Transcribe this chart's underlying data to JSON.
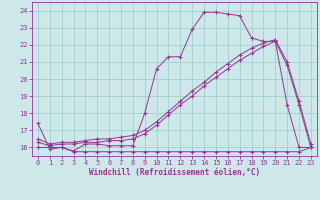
{
  "xlabel": "Windchill (Refroidissement éolien,°C)",
  "background_color": "#cce8e8",
  "grid_color": "#99cccc",
  "line_color": "#993399",
  "xlim_min": -0.5,
  "xlim_max": 23.5,
  "ylim_min": 15.5,
  "ylim_max": 24.5,
  "yticks": [
    16,
    17,
    18,
    19,
    20,
    21,
    22,
    23,
    24
  ],
  "xticks": [
    0,
    1,
    2,
    3,
    4,
    5,
    6,
    7,
    8,
    9,
    10,
    11,
    12,
    13,
    14,
    15,
    16,
    17,
    18,
    19,
    20,
    21,
    22,
    23
  ],
  "curve1_x": [
    0,
    1,
    2,
    3,
    4,
    5,
    6,
    7,
    8,
    9,
    10,
    11,
    12,
    13,
    14,
    15,
    16,
    17,
    18,
    19,
    20,
    21,
    22,
    23
  ],
  "curve1_y": [
    17.4,
    15.9,
    16.0,
    15.8,
    16.2,
    16.2,
    16.1,
    16.1,
    16.1,
    18.0,
    20.6,
    21.3,
    21.3,
    22.9,
    23.9,
    23.9,
    23.8,
    23.7,
    22.4,
    22.2,
    22.2,
    18.5,
    16.0,
    16.0
  ],
  "curve2_x": [
    0,
    1,
    2,
    3,
    4,
    5,
    6,
    7,
    8,
    9,
    10,
    11,
    12,
    13,
    14,
    15,
    16,
    17,
    18,
    19,
    20,
    21,
    22,
    23
  ],
  "curve2_y": [
    16.0,
    16.0,
    16.0,
    15.75,
    15.75,
    15.75,
    15.75,
    15.75,
    15.75,
    15.75,
    15.75,
    15.75,
    15.75,
    15.75,
    15.75,
    15.75,
    15.75,
    15.75,
    15.75,
    15.75,
    15.75,
    15.75,
    15.75,
    16.0
  ],
  "curve3_x": [
    0,
    1,
    2,
    3,
    4,
    5,
    6,
    7,
    8,
    9,
    10,
    11,
    12,
    13,
    14,
    15,
    16,
    17,
    18,
    19,
    20,
    21,
    22,
    23
  ],
  "curve3_y": [
    16.3,
    16.1,
    16.2,
    16.2,
    16.3,
    16.3,
    16.4,
    16.4,
    16.5,
    16.8,
    17.3,
    17.9,
    18.5,
    19.0,
    19.6,
    20.1,
    20.6,
    21.1,
    21.5,
    21.9,
    22.2,
    20.8,
    18.5,
    16.0
  ],
  "curve4_x": [
    0,
    1,
    2,
    3,
    4,
    5,
    6,
    7,
    8,
    9,
    10,
    11,
    12,
    13,
    14,
    15,
    16,
    17,
    18,
    19,
    20,
    21,
    22,
    23
  ],
  "curve4_y": [
    16.5,
    16.2,
    16.3,
    16.3,
    16.4,
    16.5,
    16.5,
    16.6,
    16.7,
    17.0,
    17.5,
    18.1,
    18.7,
    19.3,
    19.8,
    20.4,
    20.9,
    21.4,
    21.8,
    22.1,
    22.3,
    21.0,
    18.7,
    16.2
  ],
  "xlabel_fontsize": 5.5,
  "tick_fontsize": 5.0,
  "marker_size": 3,
  "linewidth": 0.7
}
